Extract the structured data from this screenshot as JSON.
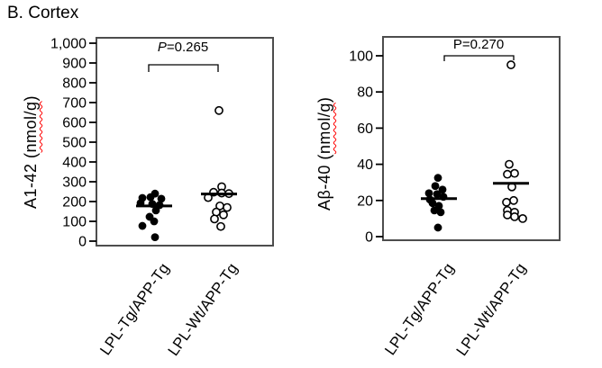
{
  "page": {
    "title": "B. Cortex"
  },
  "colors": {
    "background": "#ffffff",
    "marker": "#000000",
    "frame": "#4d4d4d",
    "spellcheck_underline": "#ff0000"
  },
  "chart_data": [
    {
      "type": "scatter",
      "ylabel": "A1-42 (nmol/g)",
      "ylabel_prefix": "A1-42 (",
      "ylabel_unit": "nmol/g",
      "ylabel_suffix": ")",
      "p_label": "P=0.265",
      "p_prefix": "P",
      "p_rest": "=0.265",
      "ylim": [
        0,
        1000
      ],
      "yticks": [
        {
          "v": 0,
          "label": "0"
        },
        {
          "v": 100,
          "label": "100"
        },
        {
          "v": 200,
          "label": "200"
        },
        {
          "v": 300,
          "label": "300"
        },
        {
          "v": 400,
          "label": "400"
        },
        {
          "v": 500,
          "label": "500"
        },
        {
          "v": 600,
          "label": "600"
        },
        {
          "v": 700,
          "label": "700"
        },
        {
          "v": 800,
          "label": "800"
        },
        {
          "v": 900,
          "label": "900"
        },
        {
          "v": 1000,
          "label": "1,000"
        }
      ],
      "groups": [
        {
          "label": "LPL-Tg/APP-Tg",
          "marker": "filled",
          "mean": 178,
          "points": [
            [
              240,
              1
            ],
            [
              222,
              -4
            ],
            [
              218,
              -13
            ],
            [
              214,
              8
            ],
            [
              192,
              -15
            ],
            [
              188,
              -2
            ],
            [
              182,
              6
            ],
            [
              155,
              2
            ],
            [
              123,
              -5
            ],
            [
              100,
              0
            ],
            [
              77,
              -13
            ],
            [
              20,
              1
            ]
          ]
        },
        {
          "label": "LPL-Wt/APP-Tg",
          "marker": "open",
          "mean": 238,
          "points": [
            [
              660,
              0
            ],
            [
              275,
              3
            ],
            [
              247,
              -6
            ],
            [
              243,
              3
            ],
            [
              240,
              11
            ],
            [
              220,
              -12
            ],
            [
              178,
              1
            ],
            [
              170,
              9
            ],
            [
              147,
              -3
            ],
            [
              133,
              5
            ],
            [
              112,
              -5
            ],
            [
              74,
              2
            ]
          ]
        }
      ]
    },
    {
      "type": "scatter",
      "ylabel": "Aβ-40 (nmol/g)",
      "ylabel_prefix": "Aβ-40 (",
      "ylabel_unit": "nmol/g",
      "ylabel_suffix": ")",
      "p_label": "P=0.270",
      "p_prefix": "P",
      "p_rest": "=0.270",
      "ylim": [
        0,
        100
      ],
      "yticks": [
        {
          "v": 0,
          "label": "0"
        },
        {
          "v": 20,
          "label": "20"
        },
        {
          "v": 40,
          "label": "40"
        },
        {
          "v": 60,
          "label": "60"
        },
        {
          "v": 80,
          "label": "80"
        },
        {
          "v": 100,
          "label": "100"
        }
      ],
      "groups": [
        {
          "label": "LPL-Tg/APP-Tg",
          "marker": "filled",
          "mean": 21,
          "points": [
            [
              32.5,
              -1
            ],
            [
              28,
              -4
            ],
            [
              26,
              4
            ],
            [
              24,
              -11
            ],
            [
              23.5,
              -2
            ],
            [
              22,
              5
            ],
            [
              20.5,
              -10
            ],
            [
              18.5,
              -7
            ],
            [
              17,
              0
            ],
            [
              14.5,
              -5
            ],
            [
              13.5,
              2
            ],
            [
              5,
              -1
            ]
          ]
        },
        {
          "label": "LPL-Wt/APP-Tg",
          "marker": "open",
          "mean": 29.5,
          "points": [
            [
              95,
              0
            ],
            [
              40,
              -2
            ],
            [
              35,
              4
            ],
            [
              34.5,
              -4
            ],
            [
              27.5,
              1
            ],
            [
              20,
              3
            ],
            [
              19,
              -5
            ],
            [
              14.5,
              -4
            ],
            [
              13.5,
              4
            ],
            [
              12,
              -4
            ],
            [
              11,
              4
            ],
            [
              10,
              13
            ]
          ]
        }
      ]
    }
  ]
}
